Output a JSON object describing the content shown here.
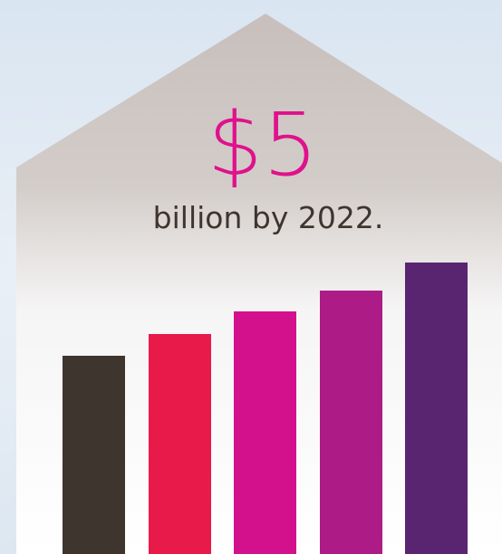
{
  "headline": {
    "amount": "$5",
    "text": "billion by 2022."
  }
}
